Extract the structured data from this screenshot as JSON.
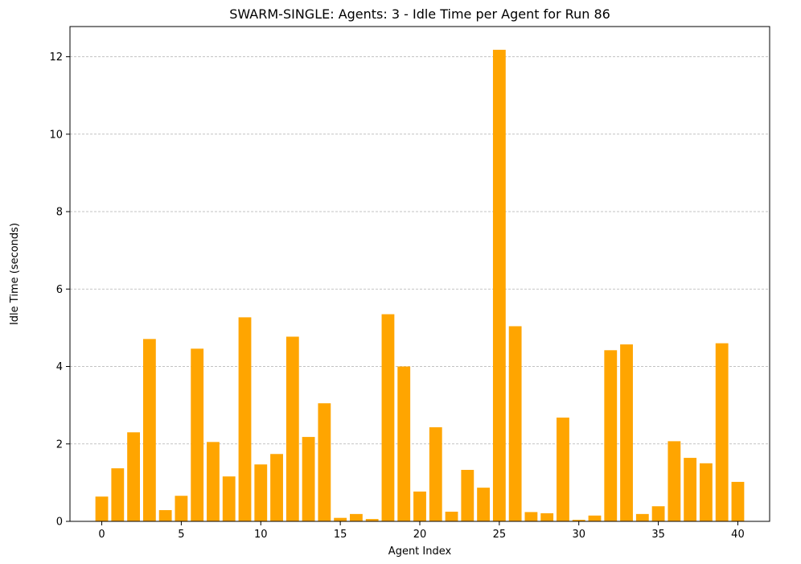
{
  "chart_data": {
    "type": "bar",
    "title": "SWARM-SINGLE: Agents: 3 - Idle Time per Agent for Run 86",
    "xlabel": "Agent Index",
    "ylabel": "Idle Time (seconds)",
    "x": [
      0,
      1,
      2,
      3,
      4,
      5,
      6,
      7,
      8,
      9,
      10,
      11,
      12,
      13,
      14,
      15,
      16,
      17,
      18,
      19,
      20,
      21,
      22,
      23,
      24,
      25,
      26,
      27,
      28,
      29,
      30,
      31,
      32,
      33,
      34,
      35,
      36,
      37,
      38,
      39,
      40
    ],
    "values": [
      0.64,
      1.37,
      2.3,
      4.71,
      0.29,
      0.66,
      4.46,
      2.05,
      1.16,
      5.27,
      1.47,
      1.74,
      4.77,
      2.18,
      3.05,
      0.09,
      0.19,
      0.06,
      5.35,
      4.0,
      0.77,
      2.43,
      0.25,
      1.33,
      0.87,
      12.18,
      5.04,
      0.24,
      0.21,
      2.68,
      0.04,
      0.15,
      4.42,
      4.57,
      0.19,
      0.39,
      2.07,
      1.64,
      1.5,
      4.6,
      1.02
    ],
    "xlim": [
      -2.0,
      42.0
    ],
    "ylim": [
      0,
      12.78
    ],
    "xticks": [
      0,
      5,
      10,
      15,
      20,
      25,
      30,
      35,
      40
    ],
    "yticks": [
      0,
      2,
      4,
      6,
      8,
      10,
      12
    ],
    "grid": "horizontal dashed",
    "bar_color": "#ffa500",
    "grid_color": "#b0b0b0"
  }
}
